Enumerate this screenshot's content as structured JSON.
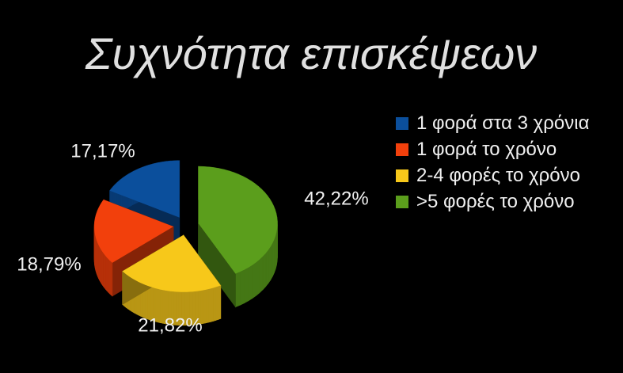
{
  "chart_data": {
    "type": "pie",
    "title": "Συχνότητα επισκέψεων",
    "categories": [
      "1 φορά στα 3 χρόνια",
      "1 φορά το χρόνο",
      "2-4 φορές το χρόνο",
      ">5 φορές το χρόνο"
    ],
    "series": [
      {
        "name": "Συχνότητα επισκέψεων",
        "values": [
          17.17,
          18.79,
          21.82,
          42.22
        ],
        "value_labels": [
          "17,17%",
          "18,79%",
          "21,82%",
          "42,22%"
        ],
        "colors": [
          "#0b4f9c",
          "#f2400c",
          "#f7c81a",
          "#5b9e1c"
        ]
      }
    ]
  }
}
